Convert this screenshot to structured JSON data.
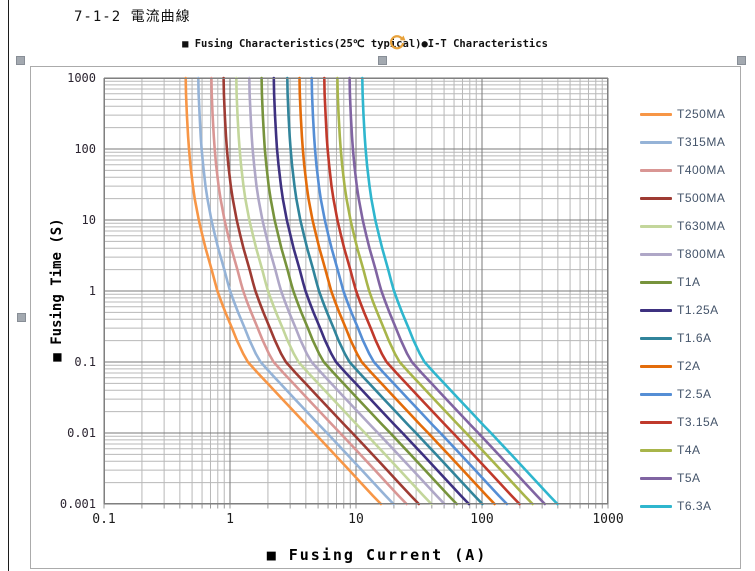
{
  "doc": {
    "heading": "7-1-2 電流曲線"
  },
  "chart": {
    "subtitle": "■ Fusing Characteristics(25℃ typical)●I-T Characteristics",
    "x_axis_title": "■ Fusing  Current (A)",
    "y_axis_title": "■ Fusing Time (S)"
  },
  "chart_data": {
    "type": "line",
    "title": "■ Fusing Characteristics(25℃ typical)●I-T Characteristics",
    "xlabel": "Fusing Current (A)",
    "ylabel": "Fusing Time (S)",
    "x_scale": "log",
    "y_scale": "log",
    "xlim": [
      0.1,
      1000
    ],
    "ylim": [
      0.001,
      1000
    ],
    "x_tick_labels": [
      "0.1",
      "1",
      "10",
      "100",
      "1000"
    ],
    "y_tick_labels": [
      "1000",
      "100",
      "10",
      "1",
      "0.1",
      "0.01",
      "0.001"
    ],
    "grid": "log major and minor, on",
    "legend_position": "right",
    "point_rule": "each curve point: current_a = rated_a × multiple (same index in times_s / current_multiples)",
    "times_s": [
      1000,
      600,
      300,
      150,
      100,
      60,
      30,
      20,
      10,
      6,
      4,
      2,
      1.3,
      1,
      0.7,
      0.5,
      0.3,
      0.2,
      0.13,
      0.1,
      0.07,
      0.05,
      0.03,
      0.02,
      0.013,
      0.01,
      0.007,
      0.005,
      0.003,
      0.002,
      0.0013,
      0.001
    ],
    "current_multiples": [
      1.78,
      1.79,
      1.82,
      1.86,
      1.89,
      1.94,
      2.03,
      2.1,
      2.26,
      2.42,
      2.56,
      2.86,
      3.05,
      3.18,
      3.42,
      3.68,
      4.15,
      4.55,
      5.1,
      5.55,
      6.65,
      7.95,
      10.4,
      12.9,
      16.2,
      18.7,
      22.6,
      27.0,
      35.3,
      43.6,
      54.6,
      63.0
    ],
    "series": [
      {
        "name": "T250MA",
        "rated_a": 0.25,
        "color": "#F79646"
      },
      {
        "name": "T315MA",
        "rated_a": 0.315,
        "color": "#95B3D7"
      },
      {
        "name": "T400MA",
        "rated_a": 0.4,
        "color": "#D99694"
      },
      {
        "name": "T500MA",
        "rated_a": 0.5,
        "color": "#9E3B33"
      },
      {
        "name": "T630MA",
        "rated_a": 0.63,
        "color": "#C3D69B"
      },
      {
        "name": "T800MA",
        "rated_a": 0.8,
        "color": "#AFA7C7"
      },
      {
        "name": "T1A",
        "rated_a": 1.0,
        "color": "#77933C"
      },
      {
        "name": "T1.25A",
        "rated_a": 1.25,
        "color": "#3E3180"
      },
      {
        "name": "T1.6A",
        "rated_a": 1.6,
        "color": "#31849B"
      },
      {
        "name": "T2A",
        "rated_a": 2.0,
        "color": "#E36C0A"
      },
      {
        "name": "T2.5A",
        "rated_a": 2.5,
        "color": "#558ED5"
      },
      {
        "name": "T3.15A",
        "rated_a": 3.15,
        "color": "#C0392B"
      },
      {
        "name": "T4A",
        "rated_a": 4.0,
        "color": "#A8B54A"
      },
      {
        "name": "T5A",
        "rated_a": 5.0,
        "color": "#8064A2"
      },
      {
        "name": "T6.3A",
        "rated_a": 6.3,
        "color": "#2FB6CE"
      }
    ]
  },
  "colors": {
    "grid_major": "#7A7A7A",
    "grid_minor": "#B8B8B8",
    "plot_border": "#808080",
    "object_border": "#ABABAB",
    "legend_text": "#44546A",
    "rotate_handle": "#E8A23B",
    "selection_handle": "#A3A9B0"
  }
}
